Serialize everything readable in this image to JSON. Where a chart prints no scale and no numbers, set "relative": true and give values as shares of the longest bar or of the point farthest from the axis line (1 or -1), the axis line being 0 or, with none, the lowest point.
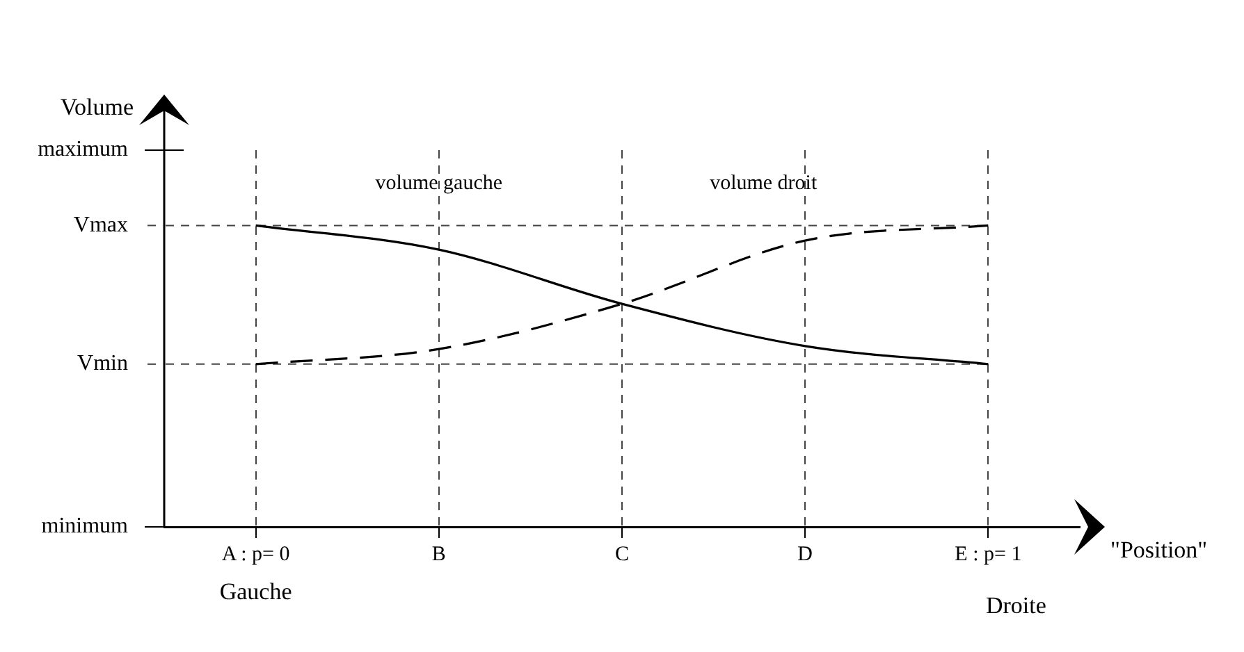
{
  "chart_data": {
    "type": "line",
    "relative": true,
    "categories": [
      "A : p= 0",
      "B",
      "C",
      "D",
      "E : p= 1"
    ],
    "xlabel": "\"Position\"",
    "ylabel": "Volume",
    "series": [
      {
        "name": "volume gauche",
        "color": "#000000",
        "line_style": "solid",
        "values": [
          1,
          0.92,
          0.74,
          0.6,
          0.54
        ]
      },
      {
        "name": "volume droit",
        "color": "#000000",
        "line_style": "dashed",
        "values": [
          0.54,
          0.59,
          0.74,
          0.95,
          1
        ]
      }
    ],
    "ref_lines": [
      {
        "axis": "y",
        "value": 1.25,
        "label": "maximum",
        "color": "#000000"
      },
      {
        "axis": "y",
        "value": 1,
        "label": "Vmax",
        "color": "#444444",
        "line_style": "dashed"
      },
      {
        "axis": "y",
        "value": 0.54,
        "label": "Vmin",
        "color": "#444444",
        "line_style": "dashed"
      },
      {
        "axis": "y",
        "value": 0,
        "label": "minimum",
        "color": "#000000"
      }
    ],
    "annotations": [
      "Gauche",
      "Droite"
    ],
    "grid": "x",
    "legend": false,
    "marker": "none"
  }
}
